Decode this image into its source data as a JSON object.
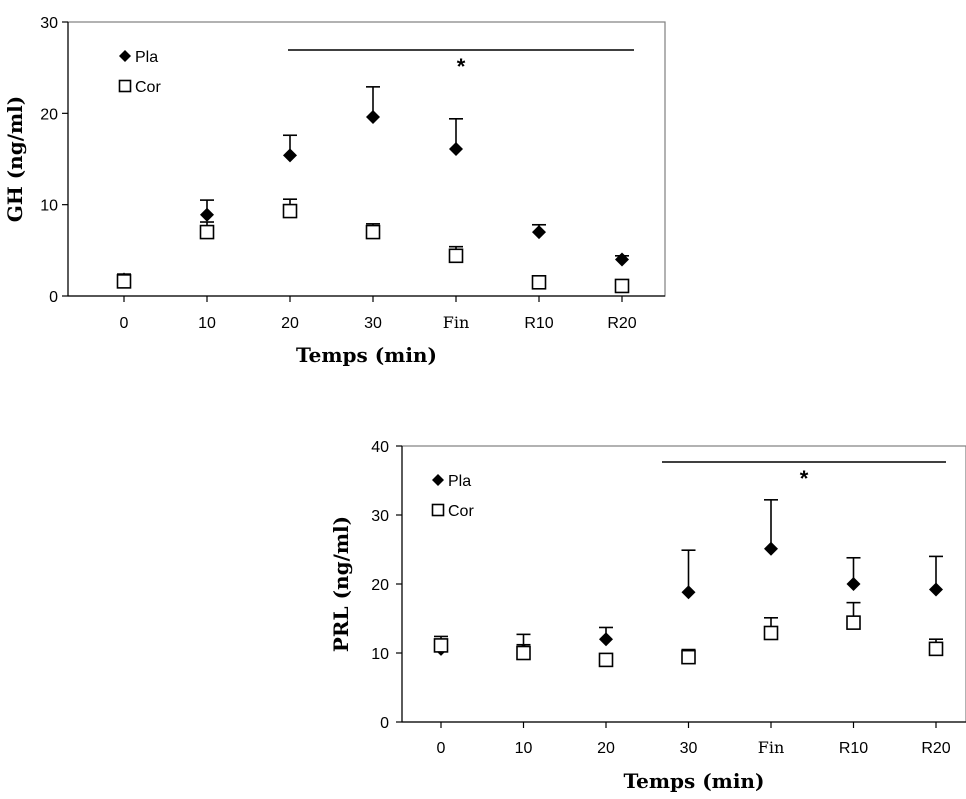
{
  "chart_data": [
    {
      "type": "scatter",
      "categories": [
        "0",
        "10",
        "20",
        "30",
        "Fin",
        "R10",
        "R20"
      ],
      "ylabel": "GH (ng/ml)",
      "xlabel": "Temps (min)",
      "ylim": [
        0,
        30
      ],
      "yticks": [
        "0",
        "10",
        "20",
        "30"
      ],
      "legend_position": "top-left",
      "significance_label": "*",
      "significance_range": [
        "20",
        "R20"
      ],
      "series": [
        {
          "name": "Pla",
          "marker": "filled-diamond",
          "values": [
            1.8,
            8.9,
            15.4,
            19.6,
            16.1,
            7.0,
            4.0
          ],
          "error": [
            0.3,
            1.6,
            2.2,
            3.3,
            3.3,
            0.8,
            0.4
          ]
        },
        {
          "name": "Cor",
          "marker": "open-square",
          "values": [
            1.6,
            7.0,
            9.3,
            7.0,
            4.4,
            1.5,
            1.1
          ],
          "error": [
            0.8,
            1.1,
            1.3,
            0.9,
            1.0,
            0.2,
            0.2
          ]
        }
      ]
    },
    {
      "type": "scatter",
      "categories": [
        "0",
        "10",
        "20",
        "30",
        "Fin",
        "R10",
        "R20"
      ],
      "ylabel": "PRL (ng/ml)",
      "xlabel": "Temps (min)",
      "ylim": [
        0,
        40
      ],
      "yticks": [
        "0",
        "10",
        "20",
        "30",
        "40"
      ],
      "legend_position": "top-left",
      "significance_label": "*",
      "significance_range": [
        "30",
        "R20"
      ],
      "series": [
        {
          "name": "Pla",
          "marker": "filled-diamond",
          "values": [
            10.6,
            10.3,
            12.0,
            18.8,
            25.1,
            20.0,
            19.2
          ],
          "error": [
            1.2,
            2.4,
            1.7,
            6.1,
            7.1,
            3.8,
            4.8
          ]
        },
        {
          "name": "Cor",
          "marker": "open-square",
          "values": [
            11.1,
            10.0,
            9.0,
            9.4,
            12.9,
            14.4,
            10.6
          ],
          "error": [
            1.3,
            1.2,
            0.5,
            1.1,
            2.2,
            2.9,
            1.4
          ]
        }
      ]
    }
  ]
}
